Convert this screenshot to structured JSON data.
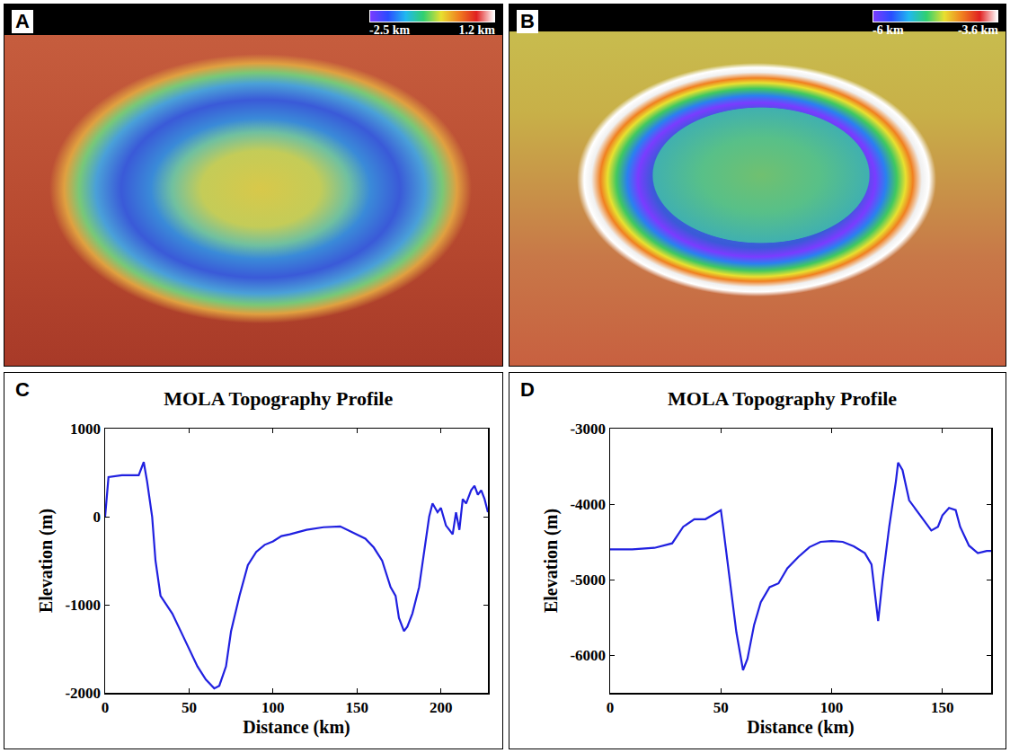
{
  "panels": [
    {
      "label": "A",
      "type": "image",
      "colorbar": {
        "range": [
          -2.5,
          1.2
        ],
        "ticks": [
          {
            "value": -2.5,
            "label": "-2.5 km"
          },
          {
            "value": 1.2,
            "label": "1.2 km"
          }
        ]
      }
    },
    {
      "label": "B",
      "type": "image",
      "colorbar": {
        "range": [
          -6,
          -3.6
        ],
        "ticks": [
          {
            "value": -6,
            "label": "-6 km"
          },
          {
            "value": -3.6,
            "label": "-3.6 km"
          }
        ]
      }
    }
  ],
  "chart_data": [
    {
      "label": "C",
      "type": "line",
      "title": "MOLA Topography Profile",
      "x_label": "Distance (km)",
      "y_label": "Elevation (m)",
      "x": [
        0,
        2,
        10,
        20,
        23,
        25,
        28,
        30,
        33,
        40,
        45,
        50,
        55,
        60,
        65,
        68,
        72,
        75,
        80,
        85,
        90,
        95,
        100,
        105,
        110,
        120,
        130,
        140,
        150,
        155,
        160,
        165,
        170,
        173,
        175,
        178,
        180,
        183,
        187,
        190,
        193,
        195,
        198,
        200,
        203,
        205,
        207,
        209,
        211,
        213,
        215,
        218,
        220,
        222,
        224,
        226,
        228
      ],
      "values": [
        0,
        450,
        470,
        470,
        620,
        400,
        0,
        -500,
        -900,
        -1100,
        -1300,
        -1500,
        -1700,
        -1850,
        -1950,
        -1920,
        -1700,
        -1300,
        -900,
        -550,
        -400,
        -320,
        -280,
        -220,
        -200,
        -150,
        -120,
        -110,
        -200,
        -250,
        -350,
        -500,
        -800,
        -900,
        -1150,
        -1300,
        -1250,
        -1100,
        -800,
        -400,
        0,
        150,
        50,
        100,
        -100,
        -150,
        -200,
        50,
        -150,
        200,
        150,
        300,
        350,
        250,
        300,
        200,
        50
      ],
      "color": "#2020e0",
      "xlim": [
        0,
        228
      ],
      "xticks": [
        0,
        50,
        100,
        150,
        200
      ],
      "ylim": [
        -2000,
        1000
      ],
      "yticks": [
        -2000,
        -1000,
        0,
        1000
      ],
      "grid": false
    },
    {
      "label": "D",
      "type": "line",
      "title": "MOLA Topography Profile",
      "x_label": "Distance (km)",
      "y_label": "Elevation (m)",
      "x": [
        0,
        10,
        20,
        28,
        33,
        38,
        43,
        46,
        50,
        51,
        54,
        57,
        60,
        62,
        65,
        68,
        72,
        76,
        80,
        85,
        90,
        95,
        100,
        105,
        110,
        115,
        118,
        120,
        121,
        123,
        126,
        129,
        130,
        132,
        135,
        140,
        145,
        148,
        150,
        153,
        156,
        158,
        162,
        166,
        170,
        172
      ],
      "values": [
        -4600,
        -4600,
        -4580,
        -4520,
        -4300,
        -4200,
        -4200,
        -4150,
        -4080,
        -4300,
        -5000,
        -5700,
        -6200,
        -6050,
        -5600,
        -5300,
        -5100,
        -5050,
        -4850,
        -4700,
        -4570,
        -4500,
        -4490,
        -4500,
        -4560,
        -4650,
        -4800,
        -5300,
        -5550,
        -5000,
        -4300,
        -3700,
        -3450,
        -3550,
        -3950,
        -4150,
        -4350,
        -4300,
        -4150,
        -4050,
        -4080,
        -4300,
        -4550,
        -4650,
        -4620,
        -4620
      ],
      "color": "#2020e0",
      "xlim": [
        0,
        172
      ],
      "xticks": [
        0,
        50,
        100,
        150
      ],
      "ylim": [
        -6500,
        -3000
      ],
      "yticks": [
        -6000,
        -5000,
        -4000,
        -3000
      ],
      "grid": false
    }
  ]
}
